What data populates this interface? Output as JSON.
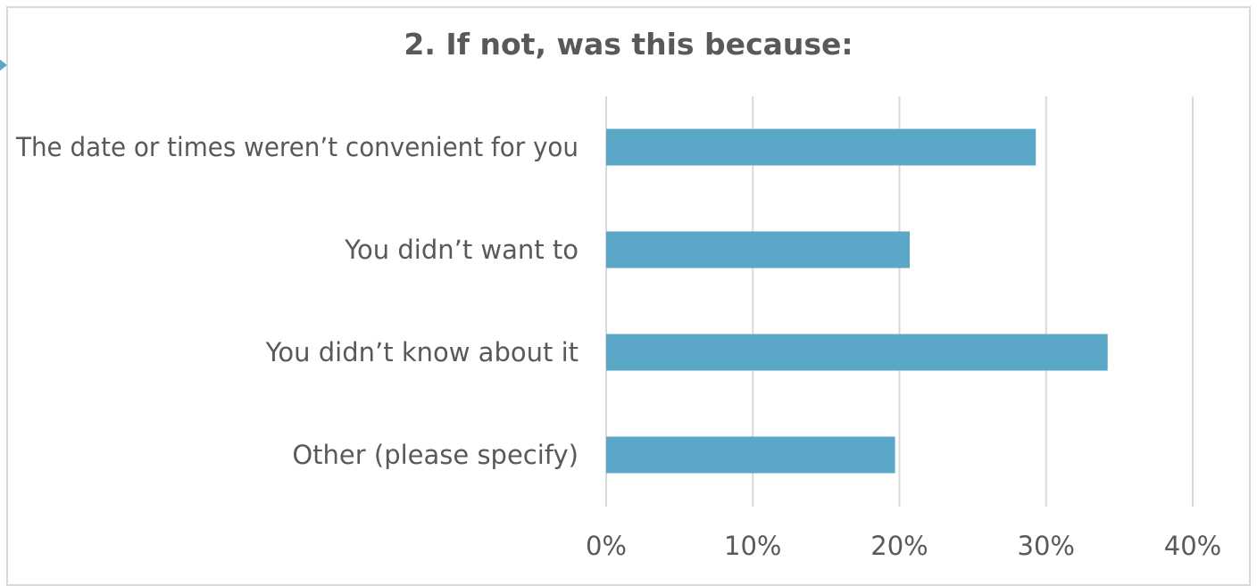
{
  "chart_data": {
    "type": "bar",
    "orientation": "horizontal",
    "title": "2. If not, was this because:",
    "categories": [
      "The date or times weren’t convenient for you",
      "You didn’t want to",
      "You didn’t know about it",
      "Other (please specify)"
    ],
    "values": [
      29.3,
      20.7,
      34.2,
      19.7
    ],
    "unit": "%",
    "xlim": [
      0,
      40
    ],
    "xticks": [
      0,
      10,
      20,
      30,
      40
    ],
    "xtick_labels": [
      "0%",
      "10%",
      "20%",
      "30%",
      "40%"
    ],
    "grid": true,
    "bar_color": "#5ba7c7"
  },
  "colors": {
    "bar": "#5ba7c7",
    "grid": "#d9d9d9",
    "text": "#595959",
    "frame": "#d9d9d9"
  }
}
